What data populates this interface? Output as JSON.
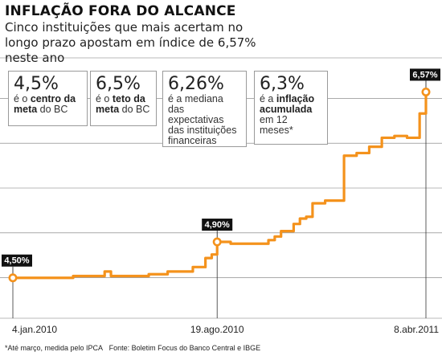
{
  "header": {
    "title": "INFLAÇÃO FORA DO ALCANCE",
    "subtitle": "Cinco instituições que mais acertam no longo prazo apostam em índice de 6,57% neste ano"
  },
  "boxes": [
    {
      "value": "4,5%",
      "parts": [
        [
          "é o ",
          false
        ],
        [
          "centro da meta",
          true
        ],
        [
          " do BC",
          false
        ]
      ]
    },
    {
      "value": "6,5%",
      "parts": [
        [
          "é o ",
          false
        ],
        [
          "teto da meta",
          true
        ],
        [
          " do BC",
          false
        ]
      ]
    },
    {
      "value": "6,26%",
      "parts": [
        [
          "é a mediana das expectativas das instituições financeiras",
          false
        ]
      ]
    },
    {
      "value": "6,3%",
      "parts": [
        [
          "é a ",
          false
        ],
        [
          "inflação acumulada",
          true
        ],
        [
          " em 12 meses*",
          false
        ]
      ]
    }
  ],
  "footer": {
    "note": "*Até março, medida pelo IPCA",
    "source": "Fonte: Boletim Focus do Banco Central e IBGE"
  },
  "colors": {
    "line": "#f4921c",
    "grid": "#777777",
    "callout_bg": "#111111"
  },
  "chart_data": {
    "type": "line",
    "title": "INFLAÇÃO FORA DO ALCANCE",
    "xlabel": "",
    "ylabel": "",
    "x_ticks": [
      "4.jan.2010",
      "19.ago.2010",
      "8.abr.2011"
    ],
    "ylim": [
      4.05,
      6.95
    ],
    "grid": true,
    "series": [
      {
        "x": [
          "2010-01-04",
          "2010-03-05",
          "2010-03-12",
          "2010-03-19",
          "2010-03-26",
          "2010-04-09",
          "2010-04-16",
          "2010-04-23",
          "2010-05-21",
          "2010-05-28",
          "2010-06-04",
          "2010-06-11",
          "2010-06-18",
          "2010-06-25",
          "2010-07-02",
          "2010-07-16",
          "2010-07-23",
          "2010-07-30",
          "2010-08-06",
          "2010-08-13",
          "2010-08-19",
          "2010-08-27",
          "2010-09-03",
          "2010-10-01",
          "2010-10-08",
          "2010-10-15",
          "2010-10-22",
          "2010-10-29",
          "2010-11-05",
          "2010-11-12",
          "2010-11-19",
          "2010-11-26",
          "2010-12-03",
          "2010-12-10",
          "2010-12-17",
          "2010-12-24",
          "2011-01-07",
          "2011-01-14",
          "2011-01-21",
          "2011-01-28",
          "2011-02-04",
          "2011-02-11",
          "2011-02-18",
          "2011-02-25",
          "2011-03-04",
          "2011-03-11",
          "2011-03-18",
          "2011-03-25",
          "2011-04-01",
          "2011-04-08"
        ],
        "values": [
          4.5,
          4.5,
          4.52,
          4.52,
          4.52,
          4.52,
          4.57,
          4.52,
          4.52,
          4.52,
          4.54,
          4.54,
          4.54,
          4.57,
          4.57,
          4.57,
          4.62,
          4.62,
          4.72,
          4.76,
          4.9,
          4.9,
          4.88,
          4.88,
          4.88,
          4.92,
          4.96,
          5.02,
          5.02,
          5.1,
          5.16,
          5.18,
          5.33,
          5.33,
          5.36,
          5.36,
          5.86,
          5.86,
          5.89,
          5.89,
          5.96,
          5.96,
          6.06,
          6.06,
          6.08,
          6.08,
          6.06,
          6.06,
          6.33,
          6.57
        ]
      }
    ],
    "callouts": [
      {
        "index": 0,
        "label": "4,50%"
      },
      {
        "index": 20,
        "label": "4,90%"
      },
      {
        "index": 49,
        "label": "6,57%"
      }
    ]
  }
}
